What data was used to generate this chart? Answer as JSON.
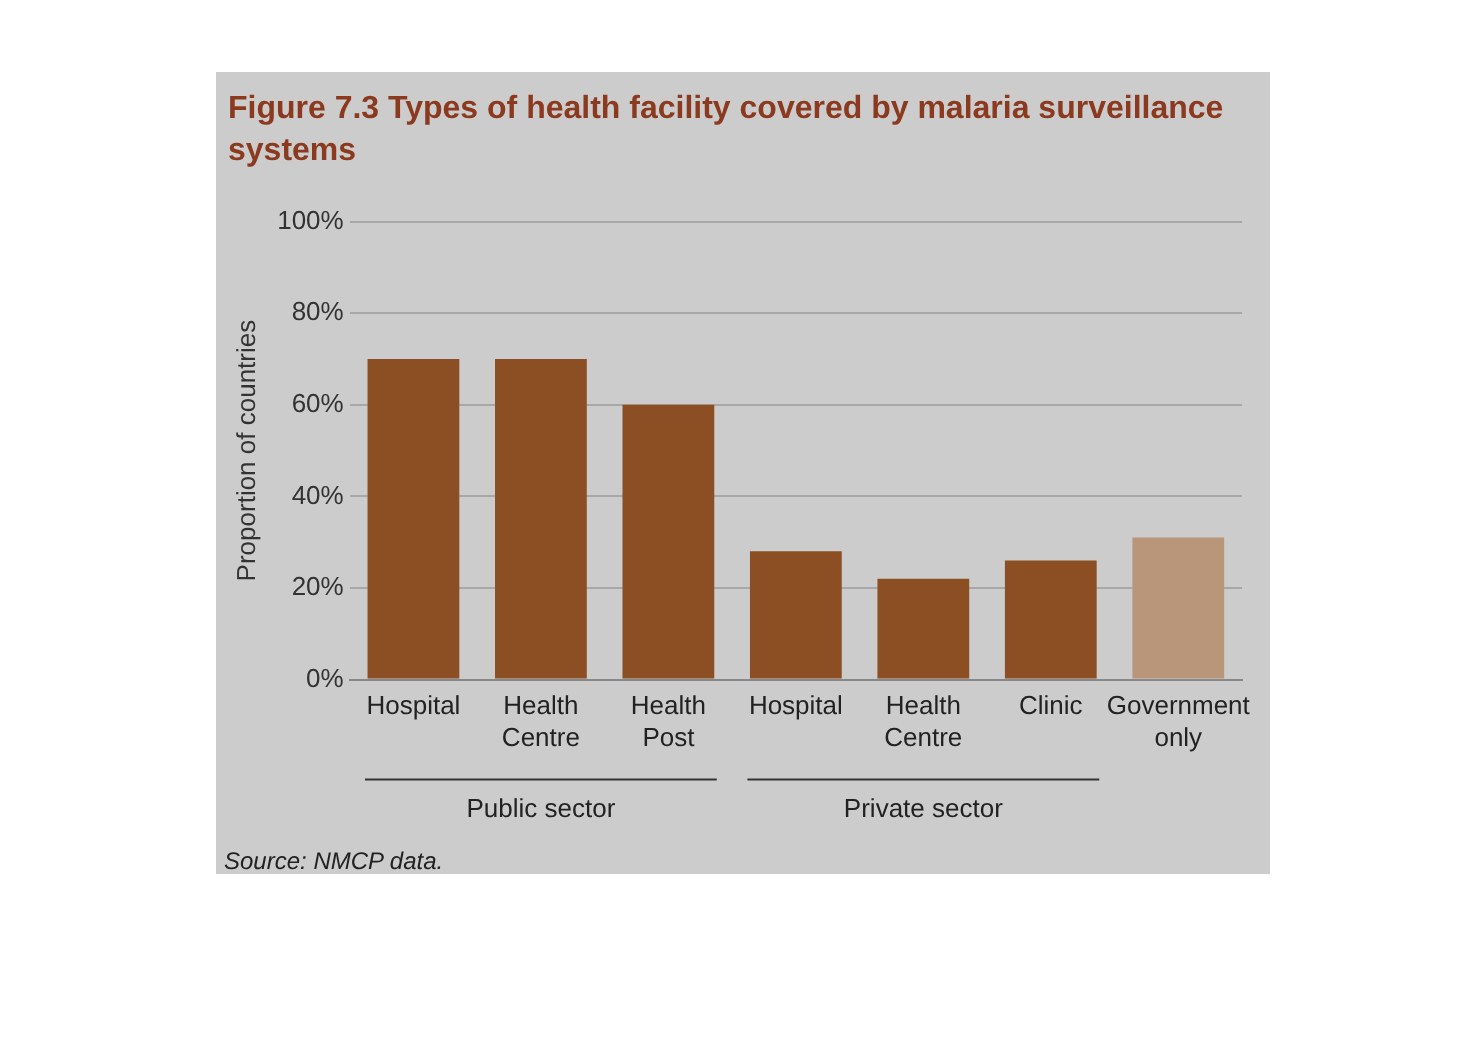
{
  "chart_data": {
    "type": "bar",
    "title": "Figure 7.3 Types of health facility covered by malaria surveillance systems",
    "ylabel": "Proportion of countries",
    "categories": [
      "Hospital",
      "Health Centre",
      "Health Post",
      "Hospital",
      "Health Centre",
      "Clinic",
      "Government only"
    ],
    "values": [
      70,
      70,
      60,
      28,
      22,
      26,
      31
    ],
    "colors": [
      "#8b4f23",
      "#8b4f23",
      "#8b4f23",
      "#8b4f23",
      "#8b4f23",
      "#8b4f23",
      "#b9967a"
    ],
    "ylim": [
      0,
      100
    ],
    "yticks": [
      {
        "value": 0,
        "label": "0%"
      },
      {
        "value": 20,
        "label": "20%"
      },
      {
        "value": 40,
        "label": "40%"
      },
      {
        "value": 60,
        "label": "60%"
      },
      {
        "value": 80,
        "label": "80%"
      },
      {
        "value": 100,
        "label": "100%"
      }
    ],
    "grid": "y",
    "annotations": [
      "Public sector",
      "Private sector",
      "Source: NMCP data."
    ]
  }
}
